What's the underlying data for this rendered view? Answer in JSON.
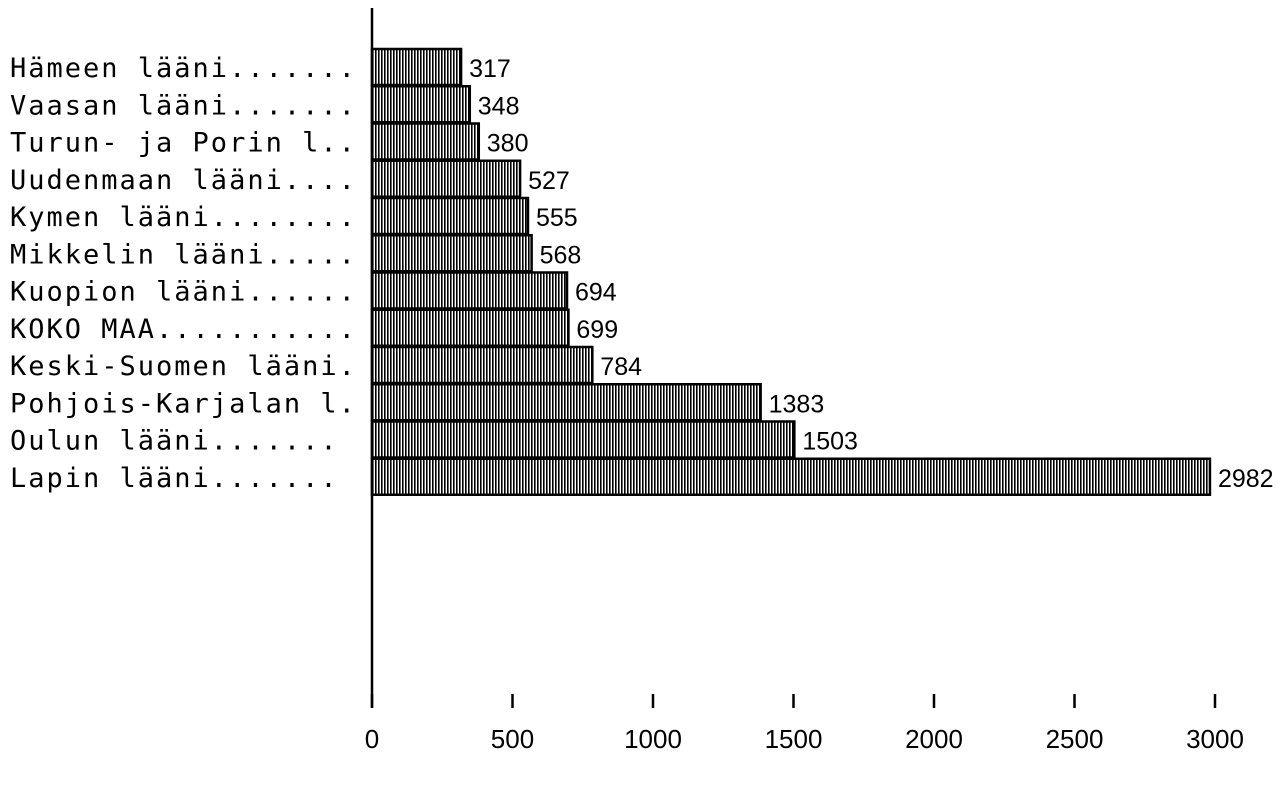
{
  "chart_data": {
    "type": "bar",
    "orientation": "horizontal",
    "categories": [
      "Hämeen lääni.......",
      "Vaasan lääni.......",
      "Turun- ja Porin l..",
      "Uudenmaan lääni....",
      "Kymen lääni........",
      "Mikkelin lääni.....",
      "Kuopion lääni......",
      "KOKO MAA...........",
      "Keski-Suomen lääni.",
      "Pohjois-Karjalan l.",
      "Oulun lääni.......",
      "Lapin lääni......."
    ],
    "values": [
      317,
      348,
      380,
      527,
      555,
      568,
      694,
      699,
      784,
      1383,
      1503,
      2982
    ],
    "value_labels": [
      "317",
      "348",
      "380",
      "527",
      "555",
      "568",
      "694",
      "699",
      "784",
      "1383",
      "1503",
      "2982"
    ],
    "xlim": [
      0,
      3000
    ],
    "xticks": [
      0,
      500,
      1000,
      1500,
      2000,
      2500,
      3000
    ],
    "xtick_labels": [
      "0",
      "500",
      "1000",
      "1500",
      "2000",
      "2500",
      "3000"
    ],
    "title": "",
    "xlabel": "",
    "ylabel": "",
    "grid": false,
    "bar_fill": "vertical-hatch",
    "colors": {
      "bar_stroke": "#000000",
      "hatch": "#000000",
      "background": "#ffffff"
    }
  }
}
